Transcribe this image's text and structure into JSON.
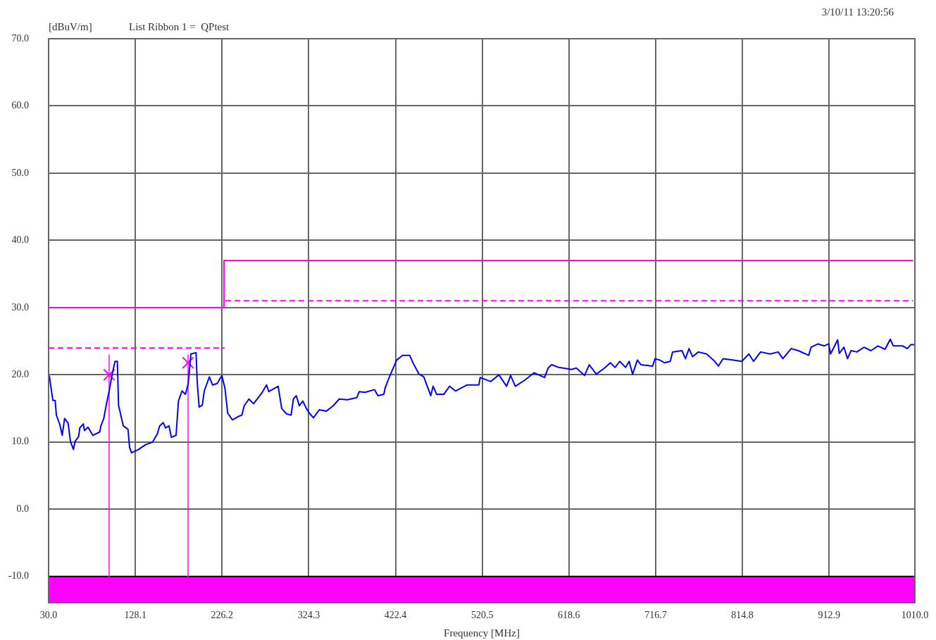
{
  "chart_data": {
    "type": "line",
    "title": "List Ribbon 1 =  QPtest",
    "ylabel": "[dBuV/m]",
    "xlabel": "Frequency [MHz]",
    "annotations": [
      "3/10/11 13:20:56"
    ],
    "xlim": [
      30,
      1010
    ],
    "ylim": [
      -13.9,
      70
    ],
    "xticks": [
      {
        "value": 30,
        "label": "30.0"
      },
      {
        "value": 128.1,
        "label": "128.1"
      },
      {
        "value": 226.2,
        "label": "226.2"
      },
      {
        "value": 324.3,
        "label": "324.3"
      },
      {
        "value": 422.4,
        "label": "422.4"
      },
      {
        "value": 520.5,
        "label": "520.5"
      },
      {
        "value": 618.6,
        "label": "618.6"
      },
      {
        "value": 716.7,
        "label": "716.7"
      },
      {
        "value": 814.8,
        "label": "814.8"
      },
      {
        "value": 912.9,
        "label": "912.9"
      },
      {
        "value": 1010,
        "label": "1010.0"
      }
    ],
    "yticks": [
      {
        "value": -10,
        "label": "-10.0"
      },
      {
        "value": 0,
        "label": "0.0"
      },
      {
        "value": 10,
        "label": "10.0"
      },
      {
        "value": 20,
        "label": "20.0"
      },
      {
        "value": 30,
        "label": "30.0"
      },
      {
        "value": 40,
        "label": "40.0"
      },
      {
        "value": 50,
        "label": "50.0"
      },
      {
        "value": 60,
        "label": "60.0"
      },
      {
        "value": 70,
        "label": "70.0"
      }
    ],
    "grid": true,
    "bands": [
      {
        "axis": "y",
        "from": -13.9,
        "to": -10,
        "color": "#ff00ff"
      }
    ],
    "ref_lines": [
      {
        "axis": "x",
        "value": 98.5,
        "color": "#ff00ff"
      },
      {
        "axis": "x",
        "value": 187.8,
        "color": "#ff00ff"
      }
    ],
    "series": [
      {
        "type": "line",
        "color": "#ff00ff",
        "line_style": "solid",
        "x": [
          30,
          228.4,
          228.4,
          1008
        ],
        "values": [
          30,
          30,
          37,
          37
        ]
      },
      {
        "type": "line",
        "color": "#ff00ff",
        "line_style": "dashed",
        "x": [
          30,
          229
        ],
        "values": [
          24,
          24
        ]
      },
      {
        "type": "line",
        "color": "#ff00ff",
        "line_style": "dashed",
        "x": [
          230,
          1008
        ],
        "values": [
          31,
          31
        ]
      },
      {
        "type": "line",
        "color": "#0000ff",
        "line_style": "solid",
        "x": [
          30.8,
          34.8,
          37.4,
          38.8,
          42.7,
          45.4,
          48.1,
          52.1,
          54.7,
          58.1,
          60.0,
          64.0,
          65.3,
          69.3,
          70.6,
          74.6,
          80.0,
          87.9,
          89.2,
          92.4,
          94.5,
          98.5,
          102.0,
          105.1,
          107.8,
          109.1,
          114.5,
          119.8,
          121.6,
          123.8,
          131.7,
          139.7,
          147.7,
          153.0,
          155.6,
          159.6,
          162.3,
          166.2,
          168.9,
          174.2,
          176.9,
          180.9,
          184.8,
          188.0,
          191.0,
          196.8,
          198.1,
          200.3,
          203.9,
          206.1,
          211.9,
          215.4,
          220.7,
          226.0,
          229.5,
          232.6,
          238.0,
          244.6,
          248.6,
          251.3,
          256.6,
          261.9,
          271.2,
          276.5,
          279.1,
          289.7,
          293.7,
          299.1,
          304.3,
          307.0,
          310.2,
          313.6,
          317.6,
          321.6,
          325.6,
          329.6,
          336.2,
          344.2,
          352.1,
          358.8,
          368.1,
          378.7,
          381.4,
          388.0,
          398.6,
          402.6,
          409.3,
          410.6,
          414.6,
          423.8,
          430.5,
          438.5,
          442.5,
          449.1,
          454.4,
          462.3,
          465.0,
          469.0,
          477.0,
          483.6,
          490.3,
          503.5,
          516.8,
          518.2,
          530.1,
          539.4,
          548.1,
          552.7,
          558.0,
          568.6,
          579.2,
          591.1,
          595.1,
          599.1,
          607.1,
          621.7,
          627.0,
          636.3,
          641.6,
          649.6,
          658.9,
          665.5,
          670.8,
          676.1,
          682.8,
          686.8,
          690.7,
          696.1,
          700.1,
          713.3,
          716.0,
          721.3,
          726.6,
          733.3,
          735.9,
          746.5,
          750.5,
          754.5,
          758.5,
          765.1,
          774.4,
          783.7,
          787.7,
          793.0,
          803.6,
          814.2,
          822.2,
          827.5,
          835.5,
          846.1,
          855.4,
          860.7,
          870.0,
          878.0,
          889.9,
          892.6,
          900.5,
          907.2,
          912.5,
          914.6,
          922.6,
          924.5,
          929.8,
          933.8,
          937.8,
          944.4,
          952.4,
          960.3,
          968.3,
          976.3,
          982.2,
          985.6,
          996.3,
          1001.5,
          1005.5,
          1009.5
        ],
        "values": [
          19.9,
          16.2,
          16.2,
          14.0,
          12.6,
          11.0,
          13.5,
          12.8,
          10.1,
          8.9,
          10.1,
          10.8,
          12.1,
          12.7,
          11.7,
          12.2,
          11.0,
          11.5,
          12.4,
          13.5,
          15.0,
          17.6,
          20.1,
          22.0,
          22.0,
          15.5,
          12.4,
          11.9,
          9.2,
          8.4,
          8.9,
          9.6,
          10.0,
          11.2,
          12.4,
          12.9,
          12.1,
          12.4,
          10.7,
          11.0,
          16.1,
          17.6,
          17.1,
          18.7,
          23.1,
          23.3,
          19.0,
          15.2,
          15.5,
          17.6,
          19.7,
          18.5,
          18.7,
          19.9,
          18.0,
          14.3,
          13.3,
          13.8,
          14.0,
          15.4,
          16.4,
          15.7,
          17.3,
          18.5,
          17.5,
          18.3,
          15.0,
          14.2,
          14.0,
          16.4,
          16.9,
          15.4,
          16.1,
          15.0,
          14.2,
          13.6,
          14.8,
          14.6,
          15.4,
          16.4,
          16.3,
          16.6,
          17.5,
          17.4,
          17.8,
          16.9,
          17.1,
          18.0,
          19.4,
          22.2,
          22.9,
          22.9,
          21.7,
          20.1,
          19.7,
          16.9,
          18.3,
          17.1,
          17.1,
          18.3,
          17.6,
          18.5,
          18.5,
          19.6,
          19.0,
          20.0,
          18.3,
          19.9,
          18.3,
          19.2,
          20.3,
          19.6,
          21.0,
          21.5,
          21.1,
          20.8,
          21.0,
          19.9,
          21.5,
          20.1,
          21.0,
          21.8,
          21.1,
          22.0,
          21.1,
          22.0,
          20.1,
          22.2,
          21.5,
          21.3,
          22.4,
          22.2,
          21.8,
          22.0,
          23.4,
          23.6,
          22.4,
          23.9,
          22.7,
          23.4,
          23.1,
          22.0,
          21.3,
          22.4,
          22.2,
          22.0,
          23.1,
          22.0,
          23.4,
          23.1,
          23.4,
          22.4,
          23.9,
          23.6,
          22.9,
          24.1,
          24.6,
          24.3,
          24.6,
          23.1,
          25.2,
          23.2,
          24.1,
          22.4,
          23.6,
          23.4,
          24.1,
          23.6,
          24.3,
          23.8,
          25.3,
          24.3,
          24.3,
          23.9,
          24.5,
          24.5
        ]
      },
      {
        "type": "scatter",
        "color": "#ff00ff",
        "marker": "cross",
        "x": [
          98.5,
          187.8
        ],
        "values": [
          20.0,
          21.8
        ]
      }
    ]
  }
}
